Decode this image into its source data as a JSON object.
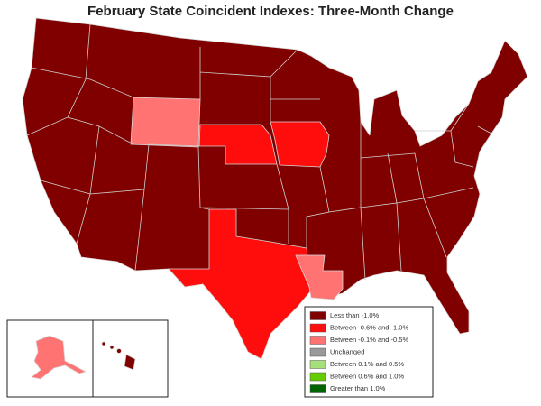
{
  "title": "February State Coincident Indexes: Three-Month Change",
  "legend": {
    "items": [
      {
        "label": "Less than -1.0%",
        "color": "#800000"
      },
      {
        "label": "Between -0.6% and -1.0%",
        "color": "#ff0d0d"
      },
      {
        "label": "Between -0.1% and -0.5%",
        "color": "#ff7373"
      },
      {
        "label": "Unchanged",
        "color": "#999999"
      },
      {
        "label": "Between 0.1% and 0.5%",
        "color": "#a6e07a"
      },
      {
        "label": "Between 0.6% and 1.0%",
        "color": "#66cc00"
      },
      {
        "label": "Greater than 1.0%",
        "color": "#006400"
      }
    ]
  }
}
